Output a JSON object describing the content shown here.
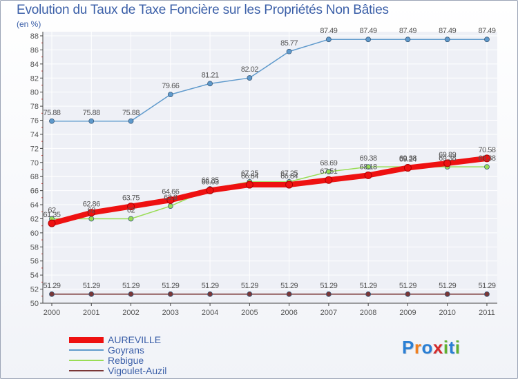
{
  "colors": {
    "title": "#3b5fa8",
    "grid": "#ffffff",
    "axis": "#444444",
    "label": "#555555"
  },
  "chart_data": {
    "type": "line",
    "title": "Evolution du Taux de Taxe Foncière sur les Propriétés Non Bâties",
    "subtitle": "(en %)",
    "xlabel": "",
    "ylabel": "",
    "ylim": [
      50,
      88
    ],
    "yticks": [
      50,
      52,
      54,
      56,
      58,
      60,
      62,
      64,
      66,
      68,
      70,
      72,
      74,
      76,
      78,
      80,
      82,
      84,
      86,
      88
    ],
    "categories": [
      "2000",
      "2001",
      "2002",
      "2003",
      "2004",
      "2005",
      "2006",
      "2007",
      "2008",
      "2009",
      "2010",
      "2011"
    ],
    "series": [
      {
        "name": "AUREVILLE",
        "color": "#ee1111",
        "values": [
          61.35,
          62.86,
          63.75,
          64.66,
          66.03,
          66.84,
          66.84,
          67.51,
          68.18,
          69.24,
          69.89,
          70.58
        ],
        "labels": [
          "61.35",
          "62.86",
          "63.75",
          "64.66",
          "66.03",
          "66.84",
          "66.84",
          "67.51",
          "68.18",
          "69.24",
          "69.89",
          "70.58"
        ]
      },
      {
        "name": "Goyrans",
        "color": "#5f9acc",
        "values": [
          75.88,
          75.88,
          75.88,
          79.66,
          81.21,
          82.02,
          85.77,
          87.49,
          87.49,
          87.49,
          87.49,
          87.49
        ],
        "labels": [
          "75.88",
          "75.88",
          "75.88",
          "79.66",
          "81.21",
          "82.02",
          "85.77",
          "87.49",
          "87.49",
          "87.49",
          "87.49",
          "87.49"
        ]
      },
      {
        "name": "Rebigue",
        "color": "#99dd55",
        "values": [
          62,
          62,
          62,
          63.8,
          66.25,
          67.25,
          67.25,
          68.69,
          69.38,
          69.38,
          69.38,
          69.38
        ],
        "labels": [
          "62",
          "62",
          "62",
          "63.8",
          "66.25",
          "67.25",
          "67.25",
          "68.69",
          "69.38",
          "69.38",
          "69.38",
          "69.38"
        ]
      },
      {
        "name": "Vigoulet-Auzil",
        "color": "#7a3636",
        "values": [
          51.29,
          51.29,
          51.29,
          51.29,
          51.29,
          51.29,
          51.29,
          51.29,
          51.29,
          51.29,
          51.29,
          51.29
        ],
        "labels": [
          "51.29",
          "51.29",
          "51.29",
          "51.29",
          "51.29",
          "51.29",
          "51.29",
          "51.29",
          "51.29",
          "51.29",
          "51.29",
          "51.29"
        ]
      }
    ],
    "legend": [
      "AUREVILLE",
      "Goyrans",
      "Rebigue",
      "Vigoulet-Auzil"
    ],
    "legend_position": "bottom-left",
    "grid": true
  },
  "logo": {
    "text": "Proxiti",
    "letters": [
      "P",
      "r",
      "o",
      "x",
      "i",
      "t",
      "i"
    ],
    "letter_colors": [
      "#2a7fd4",
      "#f08020",
      "#2a7fd4",
      "#d42a2a",
      "#60b030",
      "#2a7fd4",
      "#60b030"
    ]
  }
}
